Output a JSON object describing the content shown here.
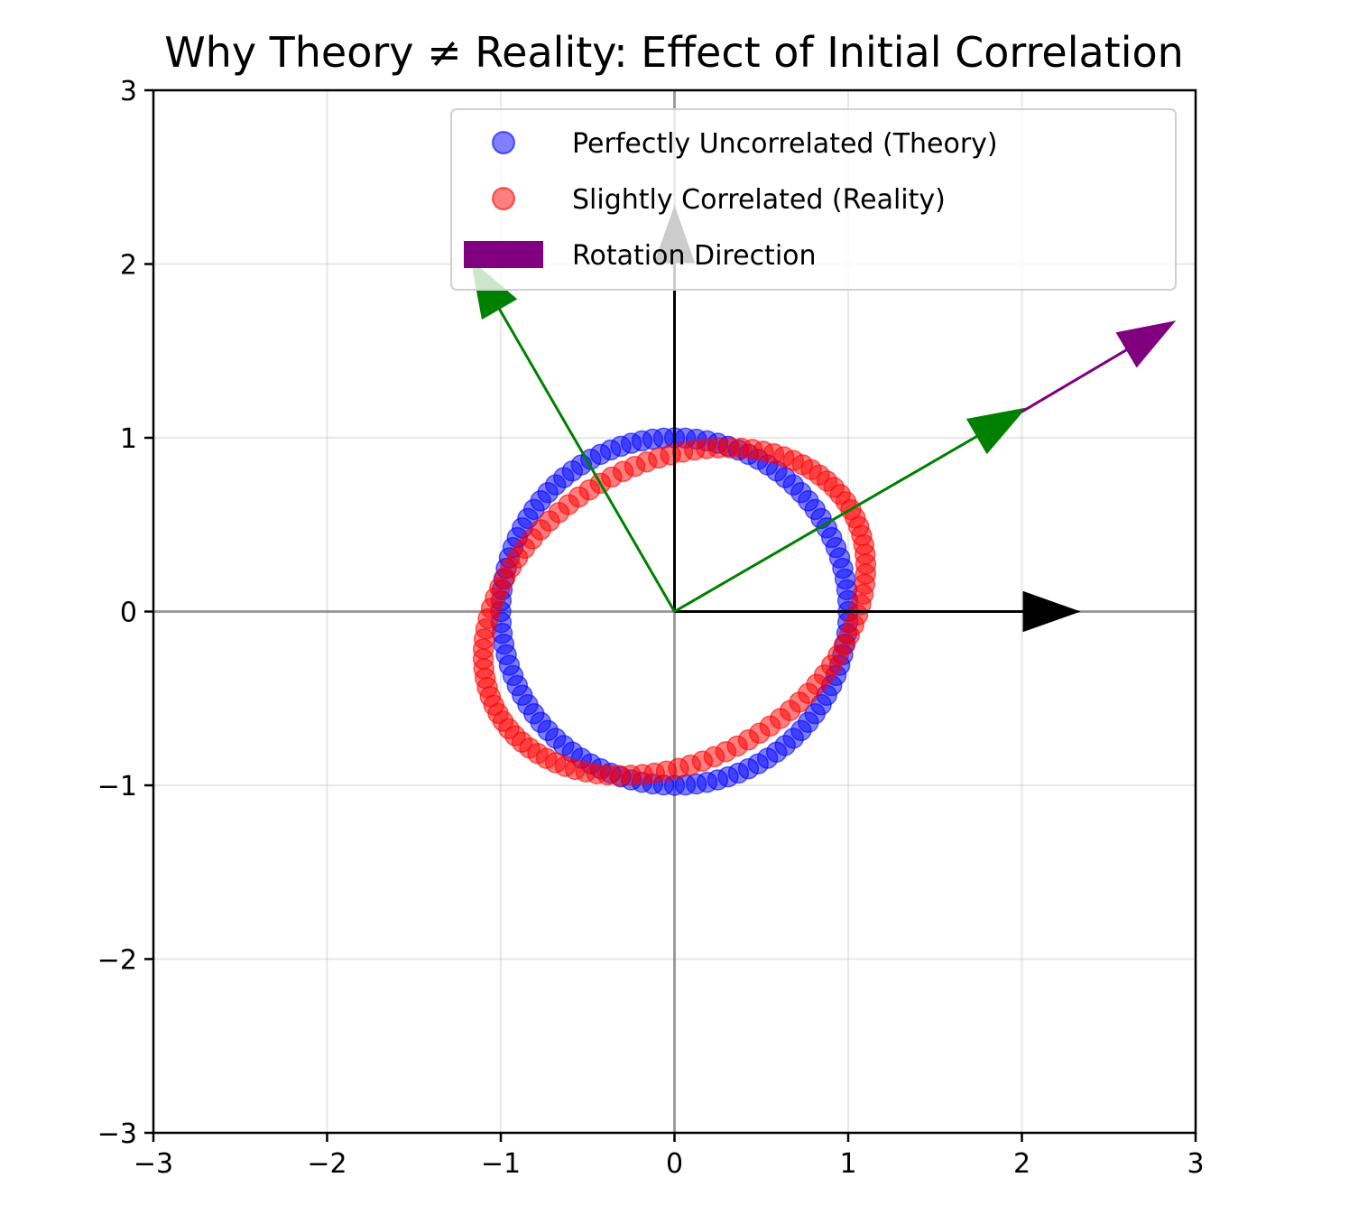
{
  "chart_data": {
    "type": "scatter",
    "title": "Why Theory ≠ Reality: Effect of Initial Correlation",
    "xlabel": "",
    "ylabel": "",
    "xlim": [
      -3,
      3
    ],
    "ylim": [
      -3,
      3
    ],
    "x_ticks": [
      "−3",
      "−2",
      "−1",
      "0",
      "1",
      "2",
      "3"
    ],
    "y_ticks": [
      "−3",
      "−2",
      "−1",
      "0",
      "1",
      "2",
      "3"
    ],
    "grid": true,
    "legend_position": "top-right",
    "series": [
      {
        "name": "Perfectly Uncorrelated (Theory)",
        "color": "#0000ff",
        "shape": "circle",
        "radius": 1.0,
        "points": 100
      },
      {
        "name": "Slightly Correlated (Reality)",
        "color": "#ff0000",
        "shape": "ellipse",
        "semi_major": 1.1,
        "semi_minor": 0.8,
        "tilt_degrees": 30,
        "points": 100
      }
    ],
    "arrows": [
      {
        "name": "x-axis-basis",
        "from": [
          0,
          0
        ],
        "to": [
          2.33,
          0
        ],
        "color": "#000000"
      },
      {
        "name": "y-axis-basis",
        "from": [
          0,
          0
        ],
        "to": [
          0,
          2.33
        ],
        "color": "#000000"
      },
      {
        "name": "rotated-major-axis",
        "from": [
          0,
          0
        ],
        "to": [
          2.02,
          1.17
        ],
        "color": "#008000"
      },
      {
        "name": "rotated-minor-axis",
        "from": [
          0,
          0
        ],
        "to": [
          -1.17,
          2.02
        ],
        "color": "#008000"
      },
      {
        "name": "rotation-direction",
        "from": [
          2.0,
          1.15
        ],
        "to": [
          2.88,
          1.67
        ],
        "color": "#800080"
      }
    ],
    "legend": [
      {
        "label": "Perfectly Uncorrelated (Theory)",
        "color": "#0000ff",
        "marker": "circle"
      },
      {
        "label": "Slightly Correlated (Reality)",
        "color": "#ff0000",
        "marker": "circle"
      },
      {
        "label": "Rotation Direction",
        "color": "#800080",
        "marker": "rect"
      }
    ]
  }
}
